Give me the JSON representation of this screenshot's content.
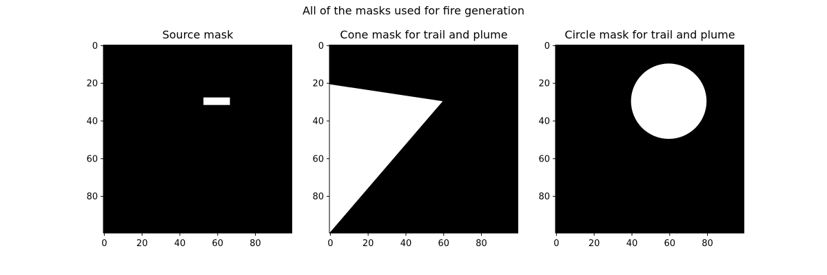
{
  "figure": {
    "suptitle": "All of the masks used for fire generation"
  },
  "chart_data": [
    {
      "type": "heatmap",
      "title": "Source mask",
      "xlabel": "",
      "ylabel": "",
      "grid_size": [
        100,
        100
      ],
      "xlim": [
        0,
        100
      ],
      "ylim": [
        100,
        0
      ],
      "x_ticks": [
        0,
        20,
        40,
        60,
        80
      ],
      "y_ticks": [
        0,
        20,
        40,
        60,
        80
      ],
      "colormap": [
        "#000000",
        "#ffffff"
      ],
      "grid": false,
      "mask": {
        "shape": "rectangle",
        "x_range": [
          53,
          67
        ],
        "y_range": [
          28,
          32
        ]
      }
    },
    {
      "type": "heatmap",
      "title": "Cone mask for trail and plume",
      "xlabel": "",
      "ylabel": "",
      "grid_size": [
        100,
        100
      ],
      "xlim": [
        0,
        100
      ],
      "ylim": [
        100,
        0
      ],
      "x_ticks": [
        0,
        20,
        40,
        60,
        80
      ],
      "y_ticks": [
        0,
        20,
        40,
        60,
        80
      ],
      "colormap": [
        "#000000",
        "#ffffff"
      ],
      "grid": false,
      "mask": {
        "shape": "cone",
        "vertices": [
          [
            0,
            21
          ],
          [
            60,
            30
          ],
          [
            0,
            100
          ]
        ]
      }
    },
    {
      "type": "heatmap",
      "title": "Circle mask for trail and plume",
      "xlabel": "",
      "ylabel": "",
      "grid_size": [
        100,
        100
      ],
      "xlim": [
        0,
        100
      ],
      "ylim": [
        100,
        0
      ],
      "x_ticks": [
        0,
        20,
        40,
        60,
        80
      ],
      "y_ticks": [
        0,
        20,
        40,
        60,
        80
      ],
      "colormap": [
        "#000000",
        "#ffffff"
      ],
      "grid": false,
      "mask": {
        "shape": "circle",
        "center": [
          60,
          30
        ],
        "radius": 20
      }
    }
  ]
}
